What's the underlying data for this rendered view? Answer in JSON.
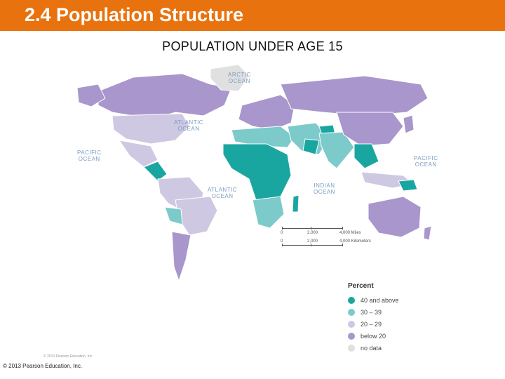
{
  "slide": {
    "title": "2.4 Population Structure",
    "accent_color": "#e8730e"
  },
  "map": {
    "title": "POPULATION UNDER AGE 15",
    "ocean_labels": {
      "arctic": "ARCTIC\nOCEAN",
      "atlantic_north": "ATLANTIC\nOCEAN",
      "pacific_east": "PACIFIC\nOCEAN",
      "atlantic_south": "ATLANTIC\nOCEAN",
      "indian": "INDIAN\nOCEAN",
      "pacific_west": "PACIFIC\nOCEAN"
    },
    "scale": {
      "miles": [
        "0",
        "2,000",
        "4,000 Miles"
      ],
      "km": [
        "0",
        "2,000",
        "4,000 Kilometers"
      ]
    },
    "legend": {
      "heading": "Percent",
      "items": [
        {
          "label": "40 and above",
          "color": "#1aa6a0"
        },
        {
          "label": "30 – 39",
          "color": "#7ccaca"
        },
        {
          "label": "20 – 29",
          "color": "#cfc8e3"
        },
        {
          "label": "below 20",
          "color": "#a996cc"
        },
        {
          "label": "no data",
          "color": "#e0e0e0"
        }
      ]
    },
    "map_credit": "© 2013 Pearson Education, Inc."
  },
  "footer": {
    "copyright": "© 2013 Pearson Education, Inc."
  }
}
